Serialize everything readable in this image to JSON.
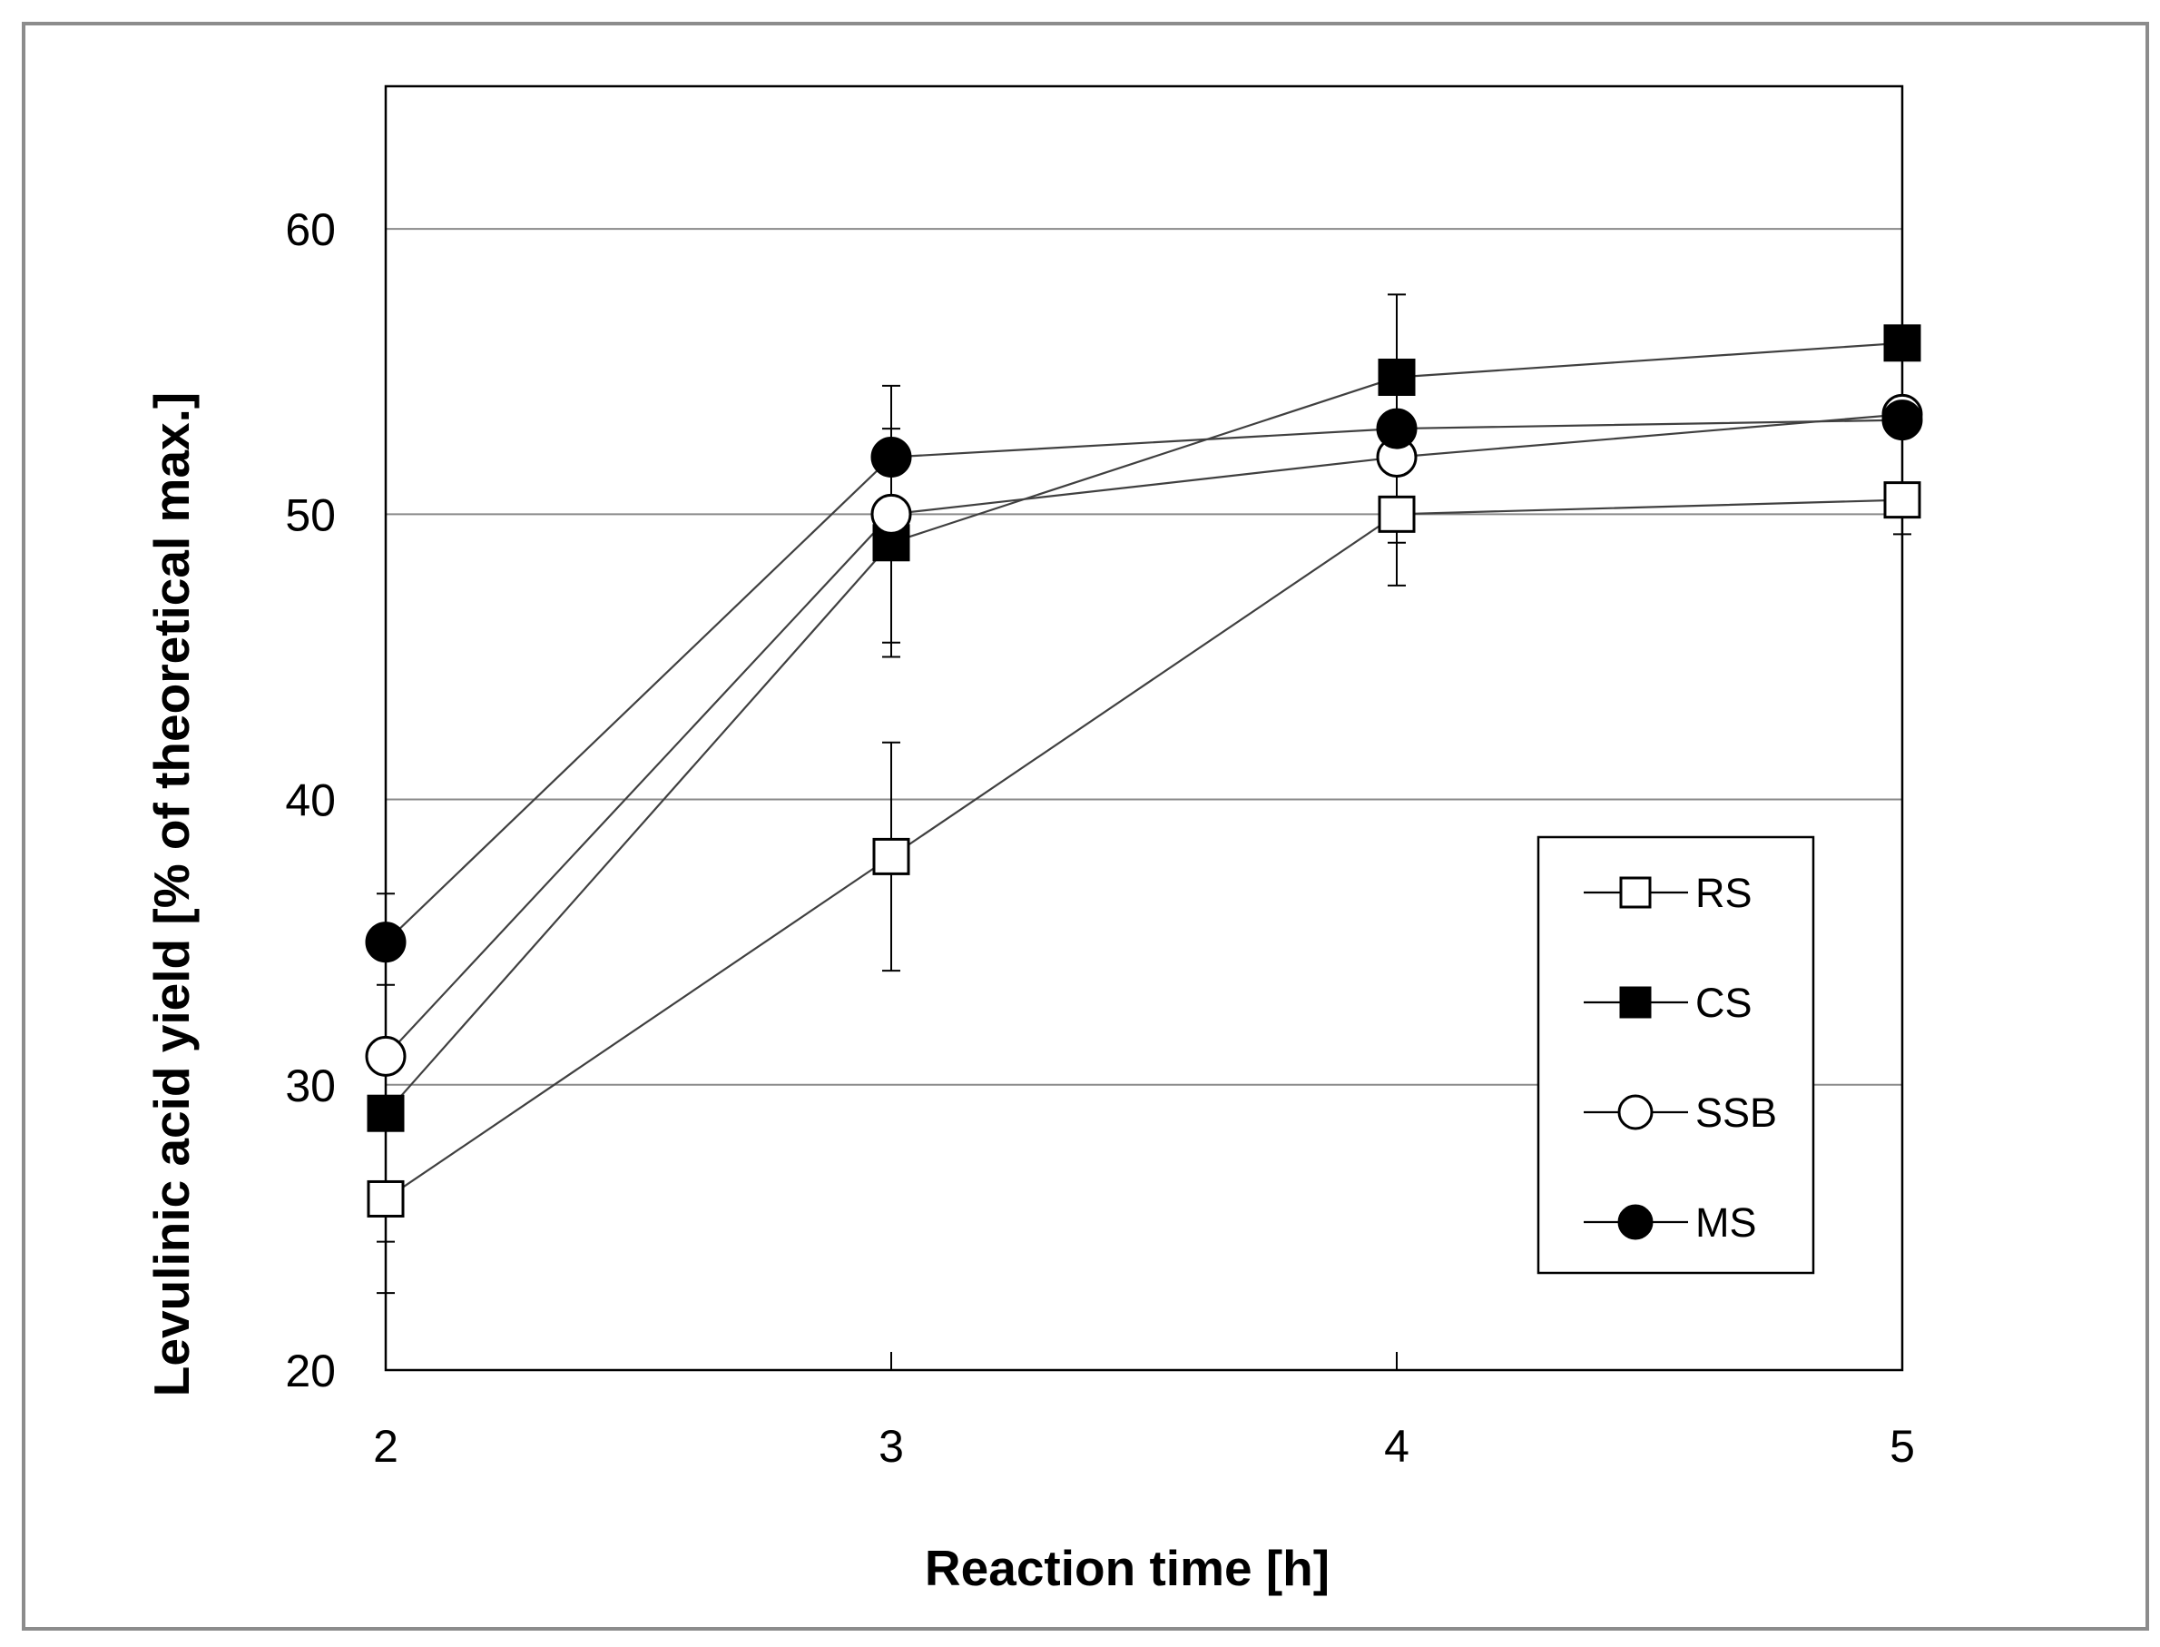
{
  "chart_data": {
    "type": "line",
    "title": "",
    "xlabel": "Reaction time [h]",
    "ylabel": "Levulinic acid yield [% of theoretical max.]",
    "x": [
      2,
      3,
      4,
      5
    ],
    "xticks": [
      "2",
      "3",
      "4",
      "5"
    ],
    "xlim": [
      2,
      5
    ],
    "ylim": [
      20,
      65
    ],
    "yticks": [
      "20",
      "30",
      "40",
      "50",
      "60"
    ],
    "ytick_values": [
      20,
      30,
      40,
      50,
      60
    ],
    "grid": "horizontal",
    "legend_position": "lower-right",
    "series": [
      {
        "name": "RS",
        "marker": "square",
        "fill": "open",
        "values": [
          26,
          38,
          50,
          50.5
        ],
        "err_upper": [
          null,
          42,
          50,
          51
        ],
        "err_lower": [
          22.7,
          34,
          47.5,
          49.3
        ]
      },
      {
        "name": "CS",
        "marker": "square",
        "fill": "filled",
        "values": [
          29,
          49,
          54.8,
          56
        ],
        "err_upper": [
          null,
          53,
          57.7,
          null
        ],
        "err_lower": [
          24.5,
          45,
          49,
          null
        ]
      },
      {
        "name": "SSB",
        "marker": "circle",
        "fill": "open",
        "values": [
          31,
          50,
          52,
          53.5
        ],
        "err_upper": [
          null,
          null,
          null,
          null
        ],
        "err_lower": [
          null,
          45.5,
          null,
          null
        ]
      },
      {
        "name": "MS",
        "marker": "circle",
        "fill": "filled",
        "values": [
          35,
          52,
          53,
          53.3
        ],
        "err_upper": [
          36.7,
          54.5,
          null,
          null
        ],
        "err_lower": [
          33.5,
          null,
          null,
          null
        ]
      }
    ]
  }
}
